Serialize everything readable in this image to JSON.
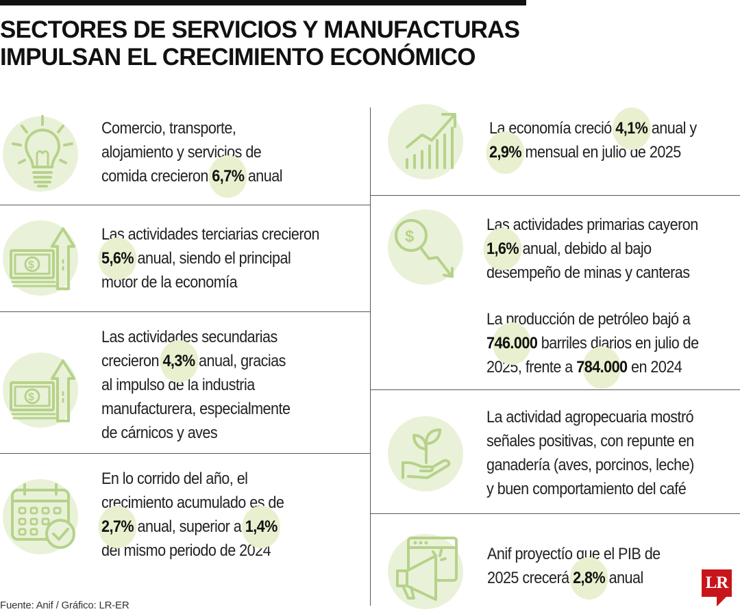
{
  "title_line1": "SECTORES DE SERVICIOS Y MANUFACTURAS",
  "title_line2": "IMPULSAN EL CRECIMIENTO ECONÓMICO",
  "left": [
    {
      "icon": "lightbulb-icon",
      "lines": [
        [
          {
            "t": "Comercio, transporte,"
          }
        ],
        [
          {
            "t": "alojamiento y servicios de"
          }
        ],
        [
          {
            "t": "comida crecieron "
          },
          {
            "t": "6,7%",
            "b": true
          },
          {
            "t": " anual"
          }
        ]
      ]
    },
    {
      "icon": "money-arrow-up-icon",
      "lines": [
        [
          {
            "t": "Las actividades terciarias crecieron"
          }
        ],
        [
          {
            "t": "5,6%",
            "b": true
          },
          {
            "t": " anual, siendo el principal"
          }
        ],
        [
          {
            "t": "motor de la economía"
          }
        ]
      ]
    },
    {
      "icon": "money-arrow-up-icon",
      "lines": [
        [
          {
            "t": "Las actividades secundarias"
          }
        ],
        [
          {
            "t": "crecieron "
          },
          {
            "t": "4,3%",
            "b": true
          },
          {
            "t": " anual, gracias"
          }
        ],
        [
          {
            "t": "al impulso de la industria"
          }
        ],
        [
          {
            "t": "manufacturera, especialmente"
          }
        ],
        [
          {
            "t": "de cárnicos y aves"
          }
        ]
      ]
    },
    {
      "icon": "calendar-check-icon",
      "lines": [
        [
          {
            "t": "En lo corrido del año, el"
          }
        ],
        [
          {
            "t": "crecimiento acumulado es de"
          }
        ],
        [
          {
            "t": "2,7%",
            "b": true
          },
          {
            "t": " anual, superior a "
          },
          {
            "t": "1,4%",
            "b": true
          }
        ],
        [
          {
            "t": "del mismo periodo de 2024"
          }
        ]
      ]
    }
  ],
  "right": [
    {
      "icon": "growth-chart-icon",
      "lines": [
        [
          {
            "t": "La economía creció "
          },
          {
            "t": "4,1%",
            "b": true
          },
          {
            "t": " anual y"
          }
        ],
        [
          {
            "t": "2,9%",
            "b": true
          },
          {
            "t": " mensual en julio de 2025"
          }
        ]
      ]
    },
    {
      "icon": "dollar-down-arrow-icon",
      "lines": [
        [
          {
            "t": "Las actividades primarias cayeron"
          }
        ],
        [
          {
            "t": "1,6%",
            "b": true
          },
          {
            "t": " anual, debido al bajo"
          }
        ],
        [
          {
            "t": "desempeño de minas y canteras"
          }
        ]
      ]
    },
    {
      "icon": "none",
      "lines": [
        [
          {
            "t": "La producción de petróleo bajó a"
          }
        ],
        [
          {
            "t": "746.000",
            "b": true
          },
          {
            "t": " barriles diarios en julio de"
          }
        ],
        [
          {
            "t": "2025, frente a "
          },
          {
            "t": "784.000",
            "b": true
          },
          {
            "t": " en 2024"
          }
        ]
      ]
    },
    {
      "icon": "plant-hand-icon",
      "lines": [
        [
          {
            "t": "La actividad agropecuaria mostró"
          }
        ],
        [
          {
            "t": "señales positivas, con repunte en"
          }
        ],
        [
          {
            "t": "ganadería (aves, porcinos, leche)"
          }
        ],
        [
          {
            "t": "y buen comportamiento del café"
          }
        ]
      ]
    },
    {
      "icon": "megaphone-icon",
      "lines": [
        [
          {
            "t": "Anif proyectío que el PIB de"
          }
        ],
        [
          {
            "t": "2025 crecerá "
          },
          {
            "t": "2,8%",
            "b": true
          },
          {
            "t": " anual"
          }
        ]
      ]
    }
  ],
  "source": "Fuente: Anif / Gráfico: LR-ER",
  "logo": "LR",
  "colors": {
    "icon_green": "#b6d28a",
    "circle_bg": "#e9f2d8",
    "highlight": "#e8f0cf",
    "logo_red": "#c8151b"
  }
}
